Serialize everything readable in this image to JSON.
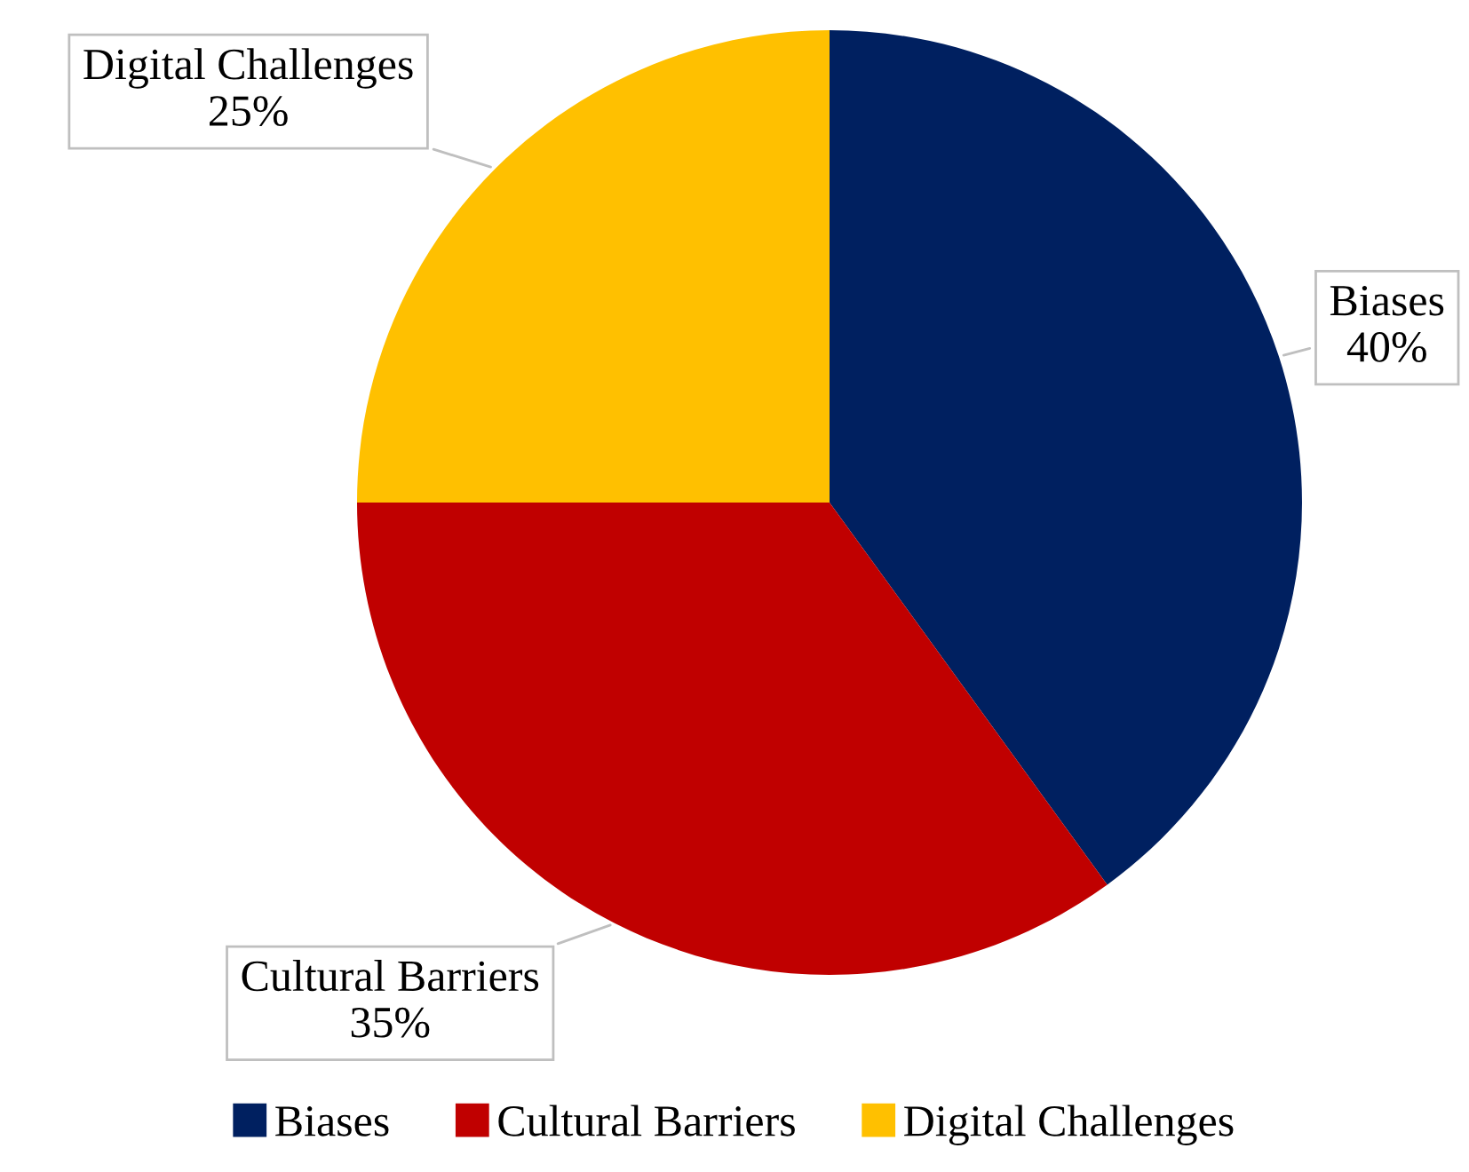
{
  "chart_data": {
    "type": "pie",
    "categories": [
      "Biases",
      "Cultural Barriers",
      "Digital Challenges"
    ],
    "values": [
      40,
      35,
      25
    ],
    "colors": [
      "#002060",
      "#c00000",
      "#ffc000"
    ],
    "value_labels": [
      "40%",
      "35%",
      "25%"
    ],
    "legend": "bottom"
  }
}
